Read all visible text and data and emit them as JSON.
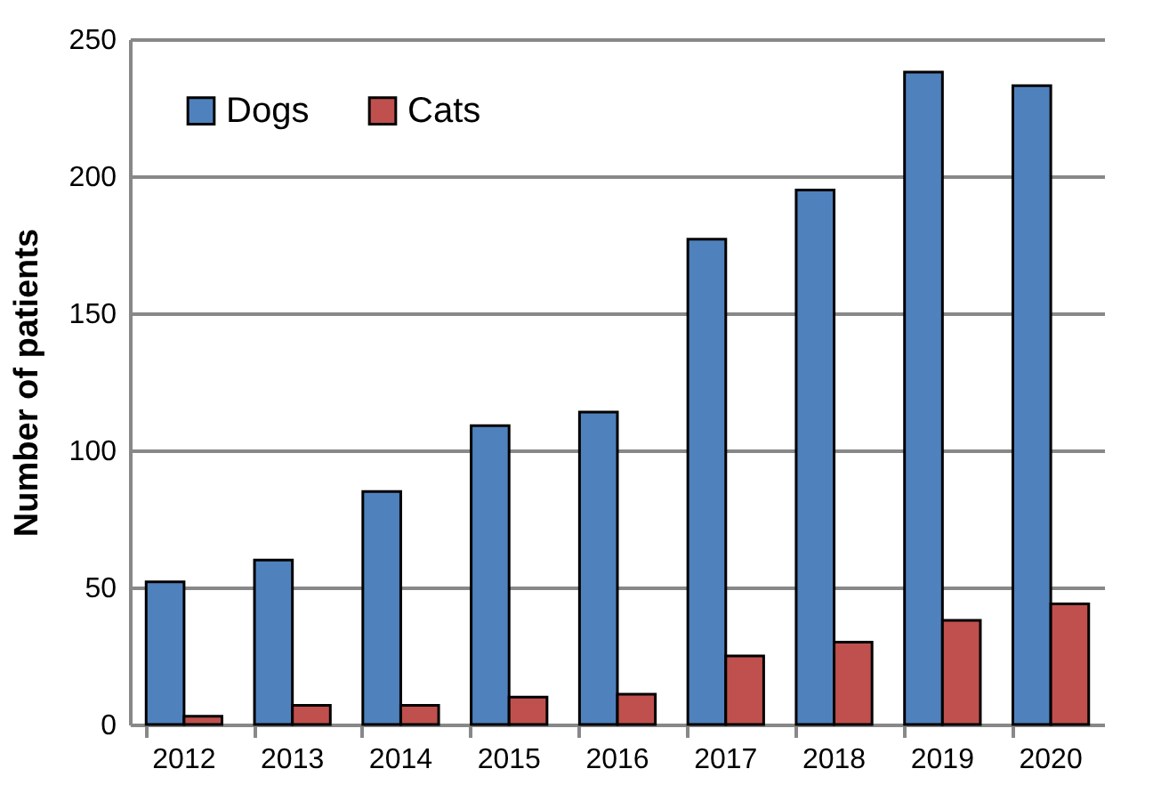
{
  "chart_data": {
    "type": "bar",
    "ylabel": "Number of patients",
    "categories": [
      "2012",
      "2013",
      "2014",
      "2015",
      "2016",
      "2017",
      "2018",
      "2019",
      "2020"
    ],
    "series": [
      {
        "name": "Dogs",
        "color": "#4f81bd",
        "values": [
          52,
          60,
          85,
          109,
          114,
          177,
          195,
          238,
          233
        ]
      },
      {
        "name": "Cats",
        "color": "#c0504d",
        "values": [
          3,
          7,
          7,
          10,
          11,
          25,
          30,
          38,
          44
        ]
      }
    ],
    "ylim": [
      0,
      250
    ],
    "yticks": [
      0,
      50,
      100,
      150,
      200,
      250
    ],
    "grid": "y",
    "legend": "top left"
  }
}
